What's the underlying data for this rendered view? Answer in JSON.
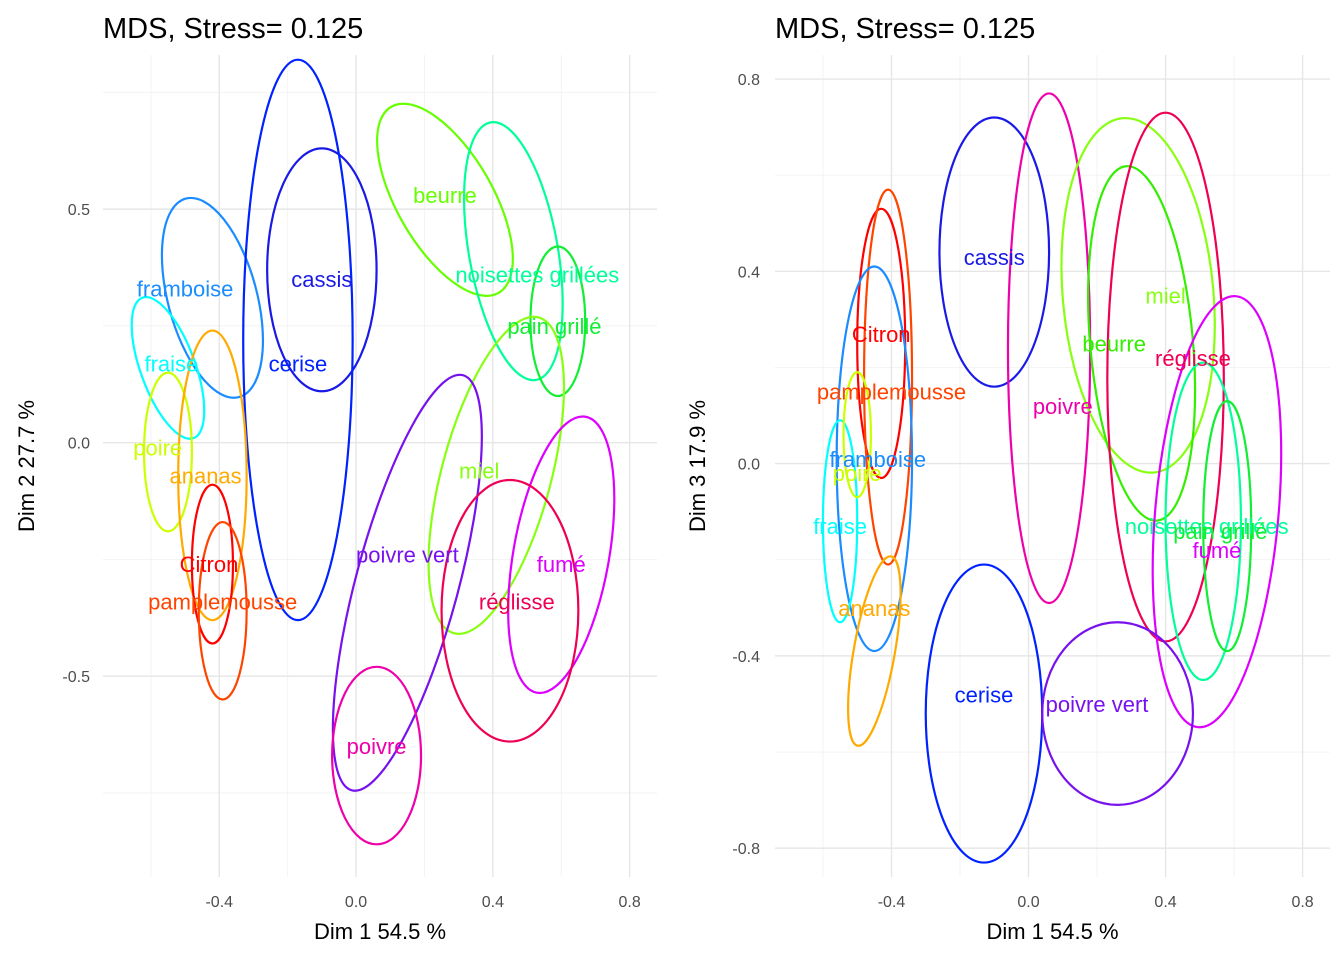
{
  "chart_data": [
    {
      "type": "scatter",
      "title": "MDS, Stress= 0.125",
      "xlabel": "Dim 1 54.5 %",
      "ylabel": "Dim 2 27.7 %",
      "xlim": [
        -0.74,
        0.88
      ],
      "ylim": [
        -0.93,
        0.83
      ],
      "xticks": [
        -0.4,
        0.0,
        0.4,
        0.8
      ],
      "yticks": [
        -0.5,
        0.0,
        0.5
      ],
      "xtick_labels": [
        "-0.4",
        "0.0",
        "0.4",
        "0.8"
      ],
      "ytick_labels": [
        "-0.5",
        "0.0",
        "0.5"
      ],
      "grid": true,
      "points": [
        {
          "label": "framboise",
          "x": -0.5,
          "y": 0.33,
          "color": "#1a8cff",
          "ellipse": {
            "cx": -0.42,
            "cy": 0.31,
            "rx": 0.13,
            "ry": 0.22,
            "angle": -15
          }
        },
        {
          "label": "cassis",
          "x": -0.1,
          "y": 0.35,
          "color": "#1a1ae6",
          "ellipse": {
            "cx": -0.1,
            "cy": 0.37,
            "rx": 0.16,
            "ry": 0.26,
            "angle": 0
          }
        },
        {
          "label": "cerise",
          "x": -0.17,
          "y": 0.17,
          "color": "#0022ff",
          "ellipse": {
            "cx": -0.17,
            "cy": 0.22,
            "rx": 0.16,
            "ry": 0.6,
            "angle": 0
          }
        },
        {
          "label": "fraise",
          "x": -0.54,
          "y": 0.17,
          "color": "#00ffff",
          "ellipse": {
            "cx": -0.55,
            "cy": 0.16,
            "rx": 0.08,
            "ry": 0.16,
            "angle": -20
          }
        },
        {
          "label": "poire",
          "x": -0.58,
          "y": -0.01,
          "color": "#ccff00",
          "ellipse": {
            "cx": -0.55,
            "cy": -0.02,
            "rx": 0.07,
            "ry": 0.17,
            "angle": 0
          }
        },
        {
          "label": "ananas",
          "x": -0.44,
          "y": -0.07,
          "color": "#ffaa00",
          "ellipse": {
            "cx": -0.42,
            "cy": -0.07,
            "rx": 0.1,
            "ry": 0.31,
            "angle": 0
          }
        },
        {
          "label": "Citron",
          "x": -0.43,
          "y": -0.26,
          "color": "#ff0000",
          "ellipse": {
            "cx": -0.42,
            "cy": -0.26,
            "rx": 0.06,
            "ry": 0.17,
            "angle": 0
          }
        },
        {
          "label": "pamplemousse",
          "x": -0.39,
          "y": -0.34,
          "color": "#ff4400",
          "ellipse": {
            "cx": -0.39,
            "cy": -0.36,
            "rx": 0.07,
            "ry": 0.19,
            "angle": 0
          }
        },
        {
          "label": "beurre",
          "x": 0.26,
          "y": 0.53,
          "color": "#66ff00",
          "ellipse": {
            "cx": 0.26,
            "cy": 0.52,
            "rx": 0.14,
            "ry": 0.23,
            "angle": -30
          }
        },
        {
          "label": "noisettes grillées",
          "x": 0.53,
          "y": 0.36,
          "color": "#00ff99",
          "ellipse": {
            "cx": 0.46,
            "cy": 0.41,
            "rx": 0.13,
            "ry": 0.28,
            "angle": -10
          }
        },
        {
          "label": "pain grillé",
          "x": 0.58,
          "y": 0.25,
          "color": "#11ee33",
          "ellipse": {
            "cx": 0.59,
            "cy": 0.26,
            "rx": 0.08,
            "ry": 0.16,
            "angle": 0
          }
        },
        {
          "label": "miel",
          "x": 0.36,
          "y": -0.06,
          "color": "#88ff11",
          "ellipse": {
            "cx": 0.41,
            "cy": -0.07,
            "rx": 0.16,
            "ry": 0.35,
            "angle": 15
          }
        },
        {
          "label": "poivre vert",
          "x": 0.15,
          "y": -0.24,
          "color": "#7711ee",
          "ellipse": {
            "cx": 0.15,
            "cy": -0.3,
            "rx": 0.15,
            "ry": 0.46,
            "angle": 15
          }
        },
        {
          "label": "fumé",
          "x": 0.6,
          "y": -0.26,
          "color": "#dd00ff",
          "ellipse": {
            "cx": 0.6,
            "cy": -0.24,
            "rx": 0.14,
            "ry": 0.3,
            "angle": 10
          }
        },
        {
          "label": "réglisse",
          "x": 0.47,
          "y": -0.34,
          "color": "#ee0055",
          "ellipse": {
            "cx": 0.45,
            "cy": -0.36,
            "rx": 0.2,
            "ry": 0.28,
            "angle": 0
          }
        },
        {
          "label": "poivre",
          "x": 0.06,
          "y": -0.65,
          "color": "#ee00aa",
          "ellipse": {
            "cx": 0.06,
            "cy": -0.67,
            "rx": 0.13,
            "ry": 0.19,
            "angle": 0
          }
        }
      ]
    },
    {
      "type": "scatter",
      "title": "MDS, Stress= 0.125",
      "xlabel": "Dim 1 54.5 %",
      "ylabel": "Dim 3 17.9 %",
      "xlim": [
        -0.74,
        0.88
      ],
      "ylim": [
        -0.86,
        0.85
      ],
      "xticks": [
        -0.4,
        0.0,
        0.4,
        0.8
      ],
      "yticks": [
        -0.8,
        -0.4,
        0.0,
        0.4,
        0.8
      ],
      "xtick_labels": [
        "-0.4",
        "0.0",
        "0.4",
        "0.8"
      ],
      "ytick_labels": [
        "-0.8",
        "-0.4",
        "0.0",
        "0.4",
        "0.8"
      ],
      "grid": true,
      "points": [
        {
          "label": "cassis",
          "x": -0.1,
          "y": 0.43,
          "color": "#1a1ae6",
          "ellipse": {
            "cx": -0.1,
            "cy": 0.44,
            "rx": 0.16,
            "ry": 0.28,
            "angle": 0
          }
        },
        {
          "label": "Citron",
          "x": -0.43,
          "y": 0.27,
          "color": "#ff0000",
          "ellipse": {
            "cx": -0.43,
            "cy": 0.25,
            "rx": 0.07,
            "ry": 0.28,
            "angle": 0
          }
        },
        {
          "label": "pamplemousse",
          "x": -0.4,
          "y": 0.15,
          "color": "#ff4400",
          "ellipse": {
            "cx": -0.41,
            "cy": 0.18,
            "rx": 0.07,
            "ry": 0.39,
            "angle": 0
          }
        },
        {
          "label": "framboise",
          "x": -0.44,
          "y": 0.01,
          "color": "#1a8cff",
          "ellipse": {
            "cx": -0.45,
            "cy": 0.01,
            "rx": 0.11,
            "ry": 0.4,
            "angle": 0
          }
        },
        {
          "label": "fraise",
          "x": -0.55,
          "y": -0.13,
          "color": "#00ffff",
          "ellipse": {
            "cx": -0.55,
            "cy": -0.12,
            "rx": 0.05,
            "ry": 0.21,
            "angle": 0
          }
        },
        {
          "label": "poire",
          "x": -0.5,
          "y": -0.02,
          "color": "#ccff00",
          "ellipse": {
            "cx": -0.5,
            "cy": 0.06,
            "rx": 0.04,
            "ry": 0.13,
            "angle": 0
          }
        },
        {
          "label": "ananas",
          "x": -0.45,
          "y": -0.3,
          "color": "#ffaa00",
          "ellipse": {
            "cx": -0.45,
            "cy": -0.39,
            "rx": 0.06,
            "ry": 0.2,
            "angle": 10
          }
        },
        {
          "label": "cerise",
          "x": -0.13,
          "y": -0.48,
          "color": "#0022ff",
          "ellipse": {
            "cx": -0.13,
            "cy": -0.52,
            "rx": 0.17,
            "ry": 0.31,
            "angle": 0
          }
        },
        {
          "label": "poivre",
          "x": 0.1,
          "y": 0.12,
          "color": "#ee00aa",
          "ellipse": {
            "cx": 0.06,
            "cy": 0.24,
            "rx": 0.12,
            "ry": 0.53,
            "angle": 0
          }
        },
        {
          "label": "miel",
          "x": 0.4,
          "y": 0.35,
          "color": "#88ff11",
          "ellipse": {
            "cx": 0.32,
            "cy": 0.35,
            "rx": 0.22,
            "ry": 0.37,
            "angle": -5
          }
        },
        {
          "label": "beurre",
          "x": 0.25,
          "y": 0.25,
          "color": "#33ee00",
          "ellipse": {
            "cx": 0.33,
            "cy": 0.25,
            "rx": 0.15,
            "ry": 0.37,
            "angle": -5
          }
        },
        {
          "label": "réglisse",
          "x": 0.48,
          "y": 0.22,
          "color": "#ee0055",
          "ellipse": {
            "cx": 0.4,
            "cy": 0.18,
            "rx": 0.17,
            "ry": 0.55,
            "angle": 0
          }
        },
        {
          "label": "noisettes grillées",
          "x": 0.52,
          "y": -0.13,
          "color": "#00ff99",
          "ellipse": {
            "cx": 0.51,
            "cy": -0.12,
            "rx": 0.11,
            "ry": 0.33,
            "angle": 0
          }
        },
        {
          "label": "pain grillé",
          "x": 0.56,
          "y": -0.14,
          "color": "#11ee33",
          "ellipse": {
            "cx": 0.58,
            "cy": -0.13,
            "rx": 0.07,
            "ry": 0.26,
            "angle": 0
          }
        },
        {
          "label": "fumé",
          "x": 0.55,
          "y": -0.18,
          "color": "#dd00ff",
          "ellipse": {
            "cx": 0.55,
            "cy": -0.1,
            "rx": 0.18,
            "ry": 0.45,
            "angle": 5
          }
        },
        {
          "label": "poivre vert",
          "x": 0.2,
          "y": -0.5,
          "color": "#7711ee",
          "ellipse": {
            "cx": 0.26,
            "cy": -0.52,
            "rx": 0.22,
            "ry": 0.19,
            "angle": 0
          }
        }
      ]
    }
  ]
}
